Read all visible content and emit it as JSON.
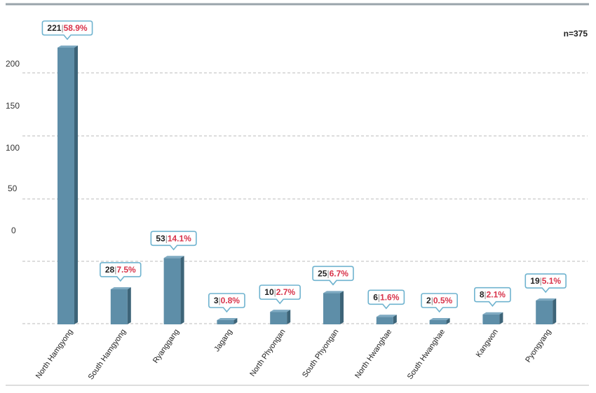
{
  "chart_data": {
    "type": "bar",
    "n_label": "n=375",
    "categories": [
      "North Hamgyong",
      "South Hamgyong",
      "Ryanggang",
      "Jagang",
      "North Phyongan",
      "South Phyongan",
      "North Hwanghae",
      "South Hwanghae",
      "Kangwon",
      "Pyongyang"
    ],
    "values": [
      221,
      28,
      53,
      3,
      10,
      25,
      6,
      2,
      8,
      19
    ],
    "percentages": [
      "58.9%",
      "7.5%",
      "14.1%",
      "0.8%",
      "2.7%",
      "6.7%",
      "1.6%",
      "0.5%",
      "2.1%",
      "5.1%"
    ],
    "y_tick_labels": [
      "200",
      "150",
      "100",
      "50",
      "0"
    ],
    "ylim": [
      0,
      221
    ],
    "grid": true,
    "colors": {
      "bar_front": "#5e8ea8",
      "bar_side": "#3d6478",
      "bar_top": "#7eaac2",
      "label_border": "#6fb3cf",
      "percent_text": "#d8334a",
      "grid": "#bbbbbb",
      "rule": "#9aa4ab"
    }
  }
}
